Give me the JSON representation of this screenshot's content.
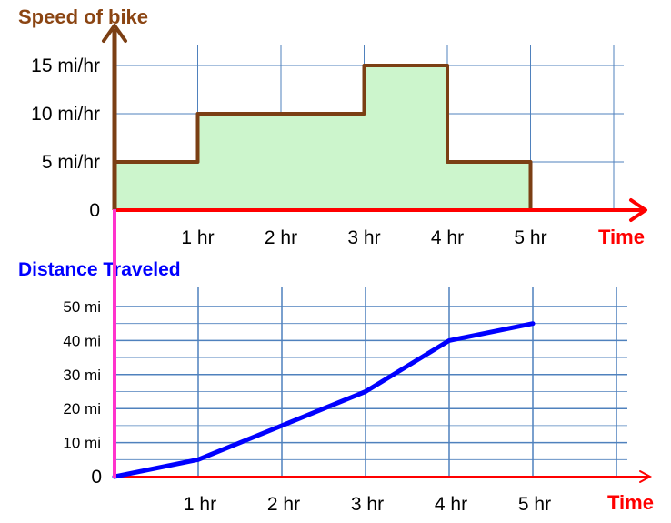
{
  "chart_data": [
    {
      "type": "area",
      "title": "Speed of bike",
      "xlabel": "Time",
      "ylabel": "Speed of bike",
      "x_tick_labels": [
        "1 hr",
        "2 hr",
        "3 hr",
        "4 hr",
        "5 hr"
      ],
      "y_tick_labels": [
        "0",
        "5 mi/hr",
        "10 mi/hr",
        "15 mi/hr"
      ],
      "xlim": [
        0,
        6
      ],
      "ylim": [
        0,
        15
      ],
      "grid": true,
      "series": [
        {
          "x": [
            0,
            1,
            1,
            3,
            3,
            4,
            4,
            5,
            5
          ],
          "y": [
            5,
            5,
            10,
            10,
            15,
            15,
            5,
            5,
            0
          ]
        }
      ],
      "colors": {
        "fill": "#ccf5cc",
        "line": "#7b3f14",
        "y_axis": "#7b3f14",
        "x_axis": "#ff0000",
        "grid": "#4f81bd",
        "title": "#8b4513",
        "xlabel": "#ff0000"
      }
    },
    {
      "type": "line",
      "title": "Distance Traveled",
      "xlabel": "Time",
      "ylabel": "Distance Traveled",
      "x_tick_labels": [
        "1 hr",
        "2 hr",
        "3 hr",
        "4 hr",
        "5 hr"
      ],
      "y_tick_labels": [
        "0",
        "10 mi",
        "20 mi",
        "30 mi",
        "40 mi",
        "50 mi"
      ],
      "xlim": [
        0,
        6
      ],
      "ylim": [
        0,
        50
      ],
      "grid": true,
      "series": [
        {
          "x": [
            0,
            1,
            2,
            3,
            4,
            5
          ],
          "y": [
            0,
            5,
            15,
            25,
            40,
            45
          ]
        }
      ],
      "colors": {
        "line": "#0000ff",
        "y_axis": "#ff33cc",
        "x_axis": "#ff0000",
        "grid": "#4f81bd",
        "title": "#0000ff",
        "xlabel": "#ff0000"
      }
    }
  ]
}
